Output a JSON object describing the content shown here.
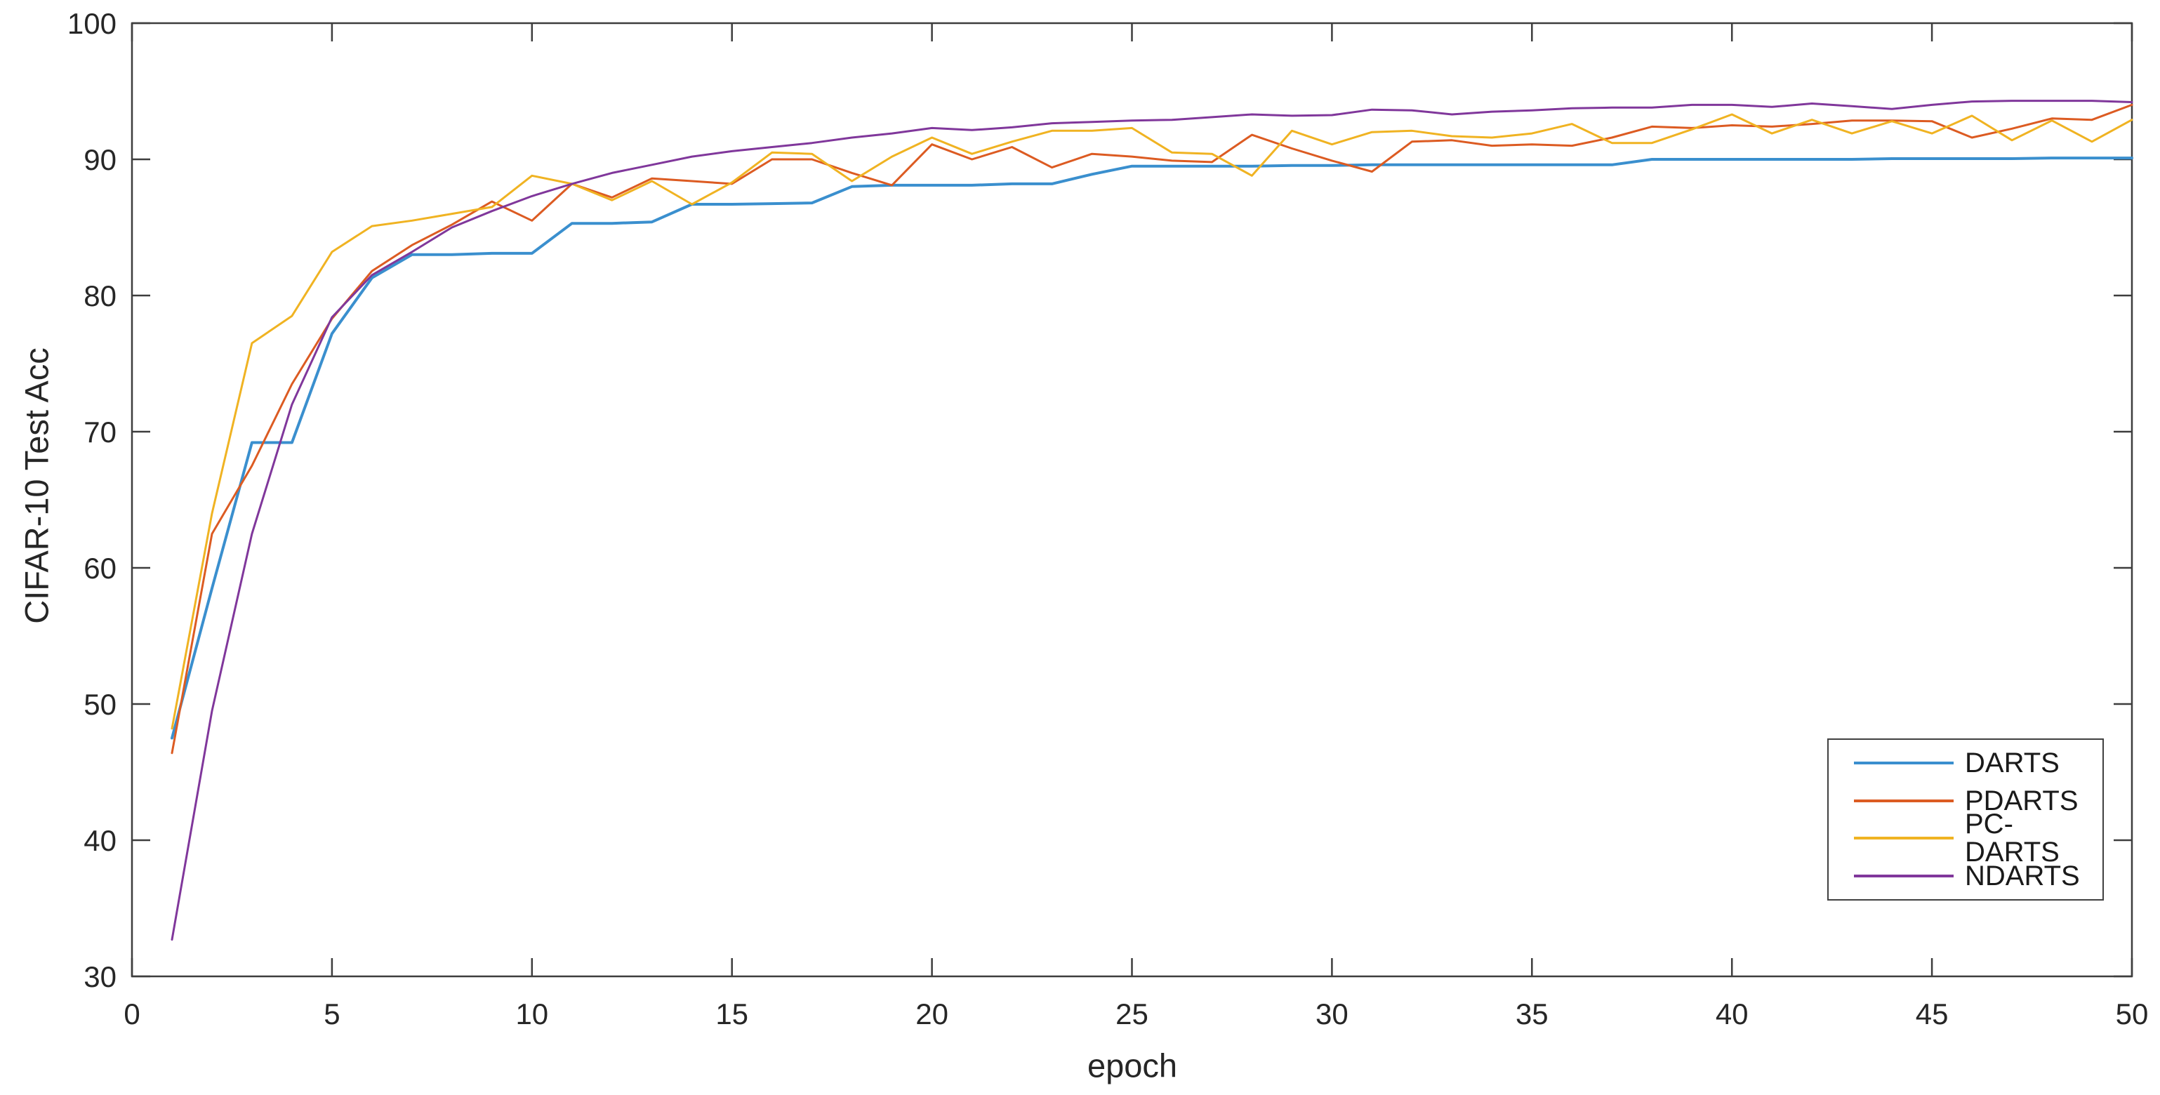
{
  "figure": {
    "background": "#ffffff",
    "axis_color": "#3d3d3d",
    "tick_label_color": "#262626"
  },
  "chart_data": {
    "type": "line",
    "title": "",
    "xlabel": "epoch",
    "ylabel": "CIFAR-10 Test Acc",
    "xlim": [
      0,
      50
    ],
    "ylim": [
      30,
      100
    ],
    "x_ticks": [
      0,
      5,
      10,
      15,
      20,
      25,
      30,
      35,
      40,
      45,
      50
    ],
    "y_ticks": [
      30,
      40,
      50,
      60,
      70,
      80,
      90,
      100
    ],
    "grid": false,
    "legend_position": "lower right",
    "x": [
      1,
      2,
      3,
      4,
      5,
      6,
      7,
      8,
      9,
      10,
      11,
      12,
      13,
      14,
      15,
      16,
      17,
      18,
      19,
      20,
      21,
      22,
      23,
      24,
      25,
      26,
      27,
      28,
      29,
      30,
      31,
      32,
      33,
      34,
      35,
      36,
      37,
      38,
      39,
      40,
      41,
      42,
      43,
      44,
      45,
      46,
      47,
      48,
      49,
      50
    ],
    "series": [
      {
        "name": "DARTS",
        "color": "#3A8FCE",
        "width": 4,
        "values": [
          47.5,
          58.5,
          69.2,
          69.2,
          77.2,
          81.3,
          83.0,
          83.0,
          83.1,
          83.1,
          85.3,
          85.3,
          85.4,
          86.7,
          86.7,
          86.75,
          86.8,
          88.0,
          88.1,
          88.1,
          88.1,
          88.2,
          88.2,
          88.9,
          89.5,
          89.5,
          89.5,
          89.5,
          89.55,
          89.55,
          89.6,
          89.6,
          89.6,
          89.6,
          89.6,
          89.6,
          89.6,
          90.0,
          90.0,
          90.0,
          90.0,
          90.0,
          90.0,
          90.05,
          90.05,
          90.05,
          90.05,
          90.1,
          90.1,
          90.1
        ]
      },
      {
        "name": "PDARTS",
        "color": "#DC5B22",
        "width": 3,
        "values": [
          46.4,
          62.5,
          67.5,
          73.5,
          78.3,
          81.8,
          83.7,
          85.2,
          86.9,
          85.5,
          88.2,
          87.2,
          88.6,
          88.4,
          88.2,
          90.0,
          90.0,
          89.0,
          88.1,
          91.1,
          90.0,
          90.9,
          89.4,
          90.4,
          90.2,
          89.9,
          89.8,
          91.8,
          90.8,
          89.9,
          89.1,
          91.3,
          91.4,
          91.0,
          91.1,
          91.0,
          91.6,
          92.4,
          92.3,
          92.5,
          92.4,
          92.6,
          92.85,
          92.85,
          92.8,
          91.6,
          92.25,
          93.0,
          92.9,
          94.0
        ]
      },
      {
        "name": "PC-DARTS",
        "color": "#F0B322",
        "width": 3,
        "values": [
          48.2,
          64.0,
          76.5,
          78.5,
          83.2,
          85.1,
          85.5,
          86.0,
          86.5,
          88.8,
          88.2,
          87.0,
          88.4,
          86.7,
          88.3,
          90.5,
          90.4,
          88.4,
          90.2,
          91.6,
          90.4,
          91.3,
          92.1,
          92.1,
          92.3,
          90.5,
          90.4,
          88.8,
          92.1,
          91.1,
          92.0,
          92.1,
          91.7,
          91.6,
          91.9,
          92.6,
          91.2,
          91.2,
          92.2,
          93.3,
          91.9,
          92.9,
          91.9,
          92.8,
          91.9,
          93.2,
          91.4,
          92.85,
          91.3,
          92.9
        ]
      },
      {
        "name": "NDARTS",
        "color": "#80379B",
        "width": 3,
        "values": [
          32.7,
          49.5,
          62.5,
          72.0,
          78.4,
          81.5,
          83.2,
          85.0,
          86.2,
          87.3,
          88.2,
          89.0,
          89.6,
          90.2,
          90.6,
          90.9,
          91.2,
          91.6,
          91.9,
          92.3,
          92.15,
          92.35,
          92.65,
          92.75,
          92.85,
          92.9,
          93.1,
          93.3,
          93.2,
          93.25,
          93.65,
          93.6,
          93.3,
          93.5,
          93.6,
          93.75,
          93.8,
          93.8,
          94.0,
          94.0,
          93.85,
          94.1,
          93.9,
          93.7,
          94.0,
          94.25,
          94.3,
          94.3,
          94.3,
          94.2
        ]
      }
    ]
  }
}
